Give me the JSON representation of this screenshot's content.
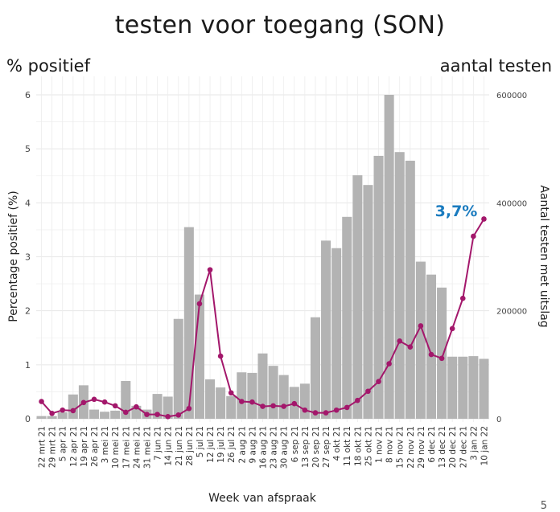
{
  "slide": {
    "title": "testen voor toegang (SON)",
    "left_corner_label": "% positief",
    "right_corner_label": "aantal testen",
    "page_number": "5"
  },
  "chart_data": {
    "type": "bar+line",
    "xlabel": "Week van afspraak",
    "ylabel_left": "Percentage positief (%)",
    "ylabel_right": "Aantal testen met uitslag",
    "ylim_left": [
      0,
      6
    ],
    "ylim_right": [
      0,
      600000
    ],
    "yticks_left": [
      "0",
      "1",
      "2",
      "3",
      "4",
      "5",
      "6"
    ],
    "yticks_right": [
      "0",
      "200000",
      "400000",
      "600000"
    ],
    "grid": true,
    "categories": [
      "22 mrt 21",
      "29 mrt 21",
      "5 apr 21",
      "12 apr 21",
      "19 apr 21",
      "26 apr 21",
      "3 mei 21",
      "10 mei 21",
      "17 mei 21",
      "24 mei 21",
      "31 mei 21",
      "7 jun 21",
      "14 jun 21",
      "21 jun 21",
      "28 jun 21",
      "5 jul 21",
      "12 jul 21",
      "19 jul 21",
      "26 jul 21",
      "2 aug 21",
      "9 aug 21",
      "16 aug 21",
      "23 aug 21",
      "30 aug 21",
      "6 sep 21",
      "13 sep 21",
      "20 sep 21",
      "27 sep 21",
      "4 okt 21",
      "11 okt 21",
      "18 okt 21",
      "25 okt 21",
      "1 nov 21",
      "8 nov 21",
      "15 nov 21",
      "22 nov 21",
      "29 nov 21",
      "6 dec 21",
      "13 dec 21",
      "20 dec 21",
      "27 dec 21",
      "3 jan 22",
      "10 jan 22"
    ],
    "series": [
      {
        "name": "Aantal testen met uitslag",
        "kind": "bar",
        "axis": "right",
        "color": "#b3b3b3",
        "values": [
          5000,
          5000,
          12000,
          45000,
          62000,
          17000,
          13000,
          15000,
          70000,
          24000,
          17000,
          46000,
          41000,
          185000,
          355000,
          230000,
          73000,
          58000,
          42000,
          86000,
          85000,
          121000,
          98000,
          81000,
          59000,
          65000,
          188000,
          330000,
          316000,
          374000,
          451000,
          433000,
          487000,
          600000,
          494000,
          478000,
          291000,
          267000,
          243000,
          115000,
          115000,
          116000,
          111000
        ]
      },
      {
        "name": "Percentage positief (%)",
        "kind": "line",
        "axis": "left",
        "color": "#a3176b",
        "values": [
          0.32,
          0.1,
          0.16,
          0.15,
          0.3,
          0.36,
          0.31,
          0.24,
          0.12,
          0.22,
          0.08,
          0.08,
          0.04,
          0.07,
          0.19,
          2.13,
          2.76,
          1.16,
          0.48,
          0.32,
          0.31,
          0.23,
          0.24,
          0.23,
          0.28,
          0.16,
          0.11,
          0.11,
          0.16,
          0.21,
          0.34,
          0.51,
          0.69,
          1.02,
          1.44,
          1.33,
          1.72,
          1.19,
          1.12,
          1.67,
          2.23,
          3.38,
          3.7
        ]
      }
    ],
    "annotation": "3,7%"
  }
}
